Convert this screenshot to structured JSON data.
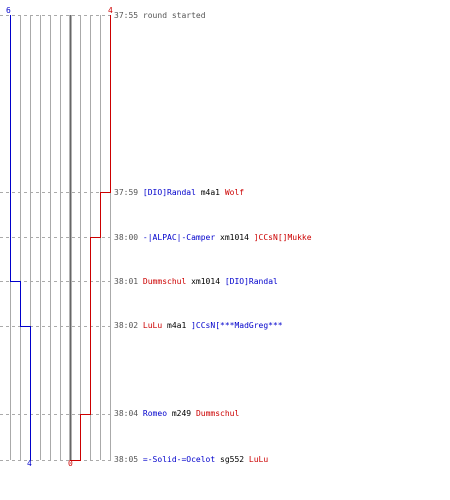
{
  "colors": {
    "team_a": "#0000cc",
    "team_b": "#cc0000",
    "grid": "#aaaaaa",
    "center": "#666666",
    "guide": "#aaaaaa"
  },
  "team_counts": {
    "start": {
      "blue": "6",
      "red": "4"
    },
    "end": {
      "blue": "4",
      "red": "0"
    }
  },
  "events": [
    {
      "time": "37:55",
      "text": "round started"
    },
    {
      "time": "37:59",
      "killer": "[DIO]Randal",
      "killer_team": "blue",
      "weapon": "m4a1",
      "victim": "Wolf",
      "victim_team": "red"
    },
    {
      "time": "38:00",
      "killer": "-|ALPAC|-Camper",
      "killer_team": "blue",
      "weapon": "xm1014",
      "victim": "]CCsN[]Mukke",
      "victim_team": "red"
    },
    {
      "time": "38:01",
      "killer": "Dummschul",
      "killer_team": "red",
      "weapon": "xm1014",
      "victim": "[DIO]Randal",
      "victim_team": "blue"
    },
    {
      "time": "38:02",
      "killer": "LuLu",
      "killer_team": "red",
      "weapon": "m4a1",
      "victim": "]CCsN[***MadGreg***",
      "victim_team": "blue"
    },
    {
      "time": "38:04",
      "killer": "Romeo",
      "killer_team": "blue",
      "weapon": "m249",
      "victim": "Dummschul",
      "victim_team": "red"
    },
    {
      "time": "38:05",
      "killer": "=-Solid-=Ocelot",
      "killer_team": "blue",
      "weapon": "sg552",
      "victim": "LuLu",
      "victim_team": "red"
    }
  ],
  "line_levels": {
    "blue": [
      6,
      6,
      6,
      5,
      4,
      4,
      4
    ],
    "red": [
      4,
      3,
      2,
      2,
      2,
      1,
      0
    ]
  }
}
